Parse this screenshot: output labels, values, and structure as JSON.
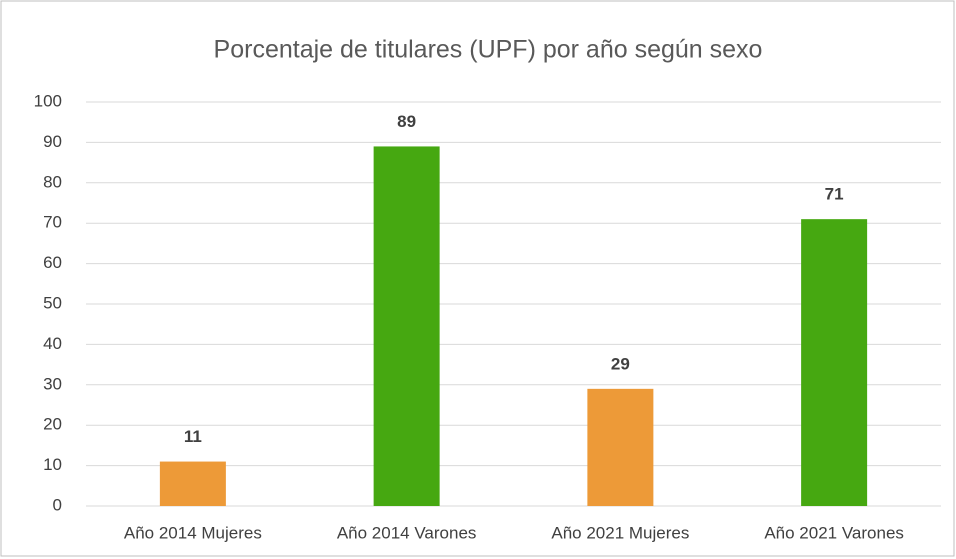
{
  "chart_data": {
    "type": "bar",
    "title": "Porcentaje de titulares (UPF) por año según sexo",
    "categories": [
      "Año 2014 Mujeres",
      "Año 2014 Varones",
      "Año 2021 Mujeres",
      "Año 2021 Varones"
    ],
    "values": [
      11,
      89,
      29,
      71
    ],
    "colors": [
      "#ed9a38",
      "#46a811",
      "#ed9a38",
      "#46a811"
    ],
    "ylim": [
      0,
      100
    ],
    "yticks": [
      0,
      10,
      20,
      30,
      40,
      50,
      60,
      70,
      80,
      90,
      100
    ],
    "grid": true
  }
}
